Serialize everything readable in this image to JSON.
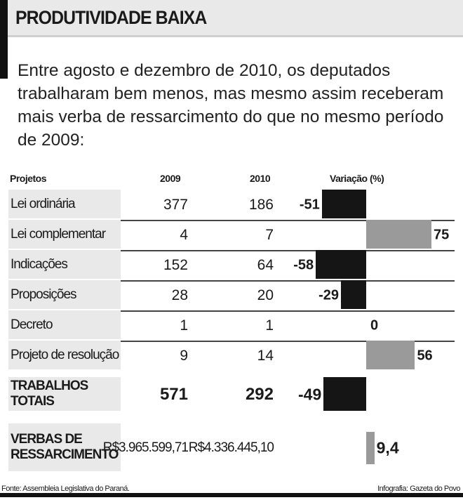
{
  "title": "PRODUTIVIDADE BAIXA",
  "intro": "Entre agosto e dezembro de 2010, os deputados trabalharam bem menos, mas mesmo assim receberam mais verba de ressarcimento do que no mesmo período de 2009:",
  "chart_data": {
    "type": "table",
    "columns": [
      "Projetos",
      "2009",
      "2010",
      "Variação (%)"
    ],
    "rows": [
      {
        "label": "Lei ordinária",
        "y2009": "377",
        "y2010": "186",
        "variation": -51,
        "variation_label": "-51"
      },
      {
        "label": "Lei complementar",
        "y2009": "4",
        "y2010": "7",
        "variation": 75,
        "variation_label": "75"
      },
      {
        "label": "Indicações",
        "y2009": "152",
        "y2010": "64",
        "variation": -58,
        "variation_label": "-58"
      },
      {
        "label": "Proposições",
        "y2009": "28",
        "y2010": "20",
        "variation": -29,
        "variation_label": "-29"
      },
      {
        "label": "Decreto",
        "y2009": "1",
        "y2010": "1",
        "variation": 0,
        "variation_label": "0"
      },
      {
        "label": "Projeto de resolução",
        "y2009": "9",
        "y2010": "14",
        "variation": 56,
        "variation_label": "56"
      }
    ],
    "totals": {
      "label": "TRABALHOS TOTAIS",
      "y2009": "571",
      "y2010": "292",
      "variation": -49,
      "variation_label": "-49"
    },
    "verbas": {
      "label": "VERBAS DE RESSARCIMENTO",
      "y2009": "R$3.965.599,71",
      "y2010": "R$4.336.445,10",
      "variation": 9.4,
      "variation_label": "9,4"
    },
    "colors": {
      "negative": "#151515",
      "positive": "#9a9a9a"
    }
  },
  "footer": {
    "source": "Fonte: Assembleia Legislativa do Paraná.",
    "credit": "Infografia: Gazeta do Povo"
  }
}
